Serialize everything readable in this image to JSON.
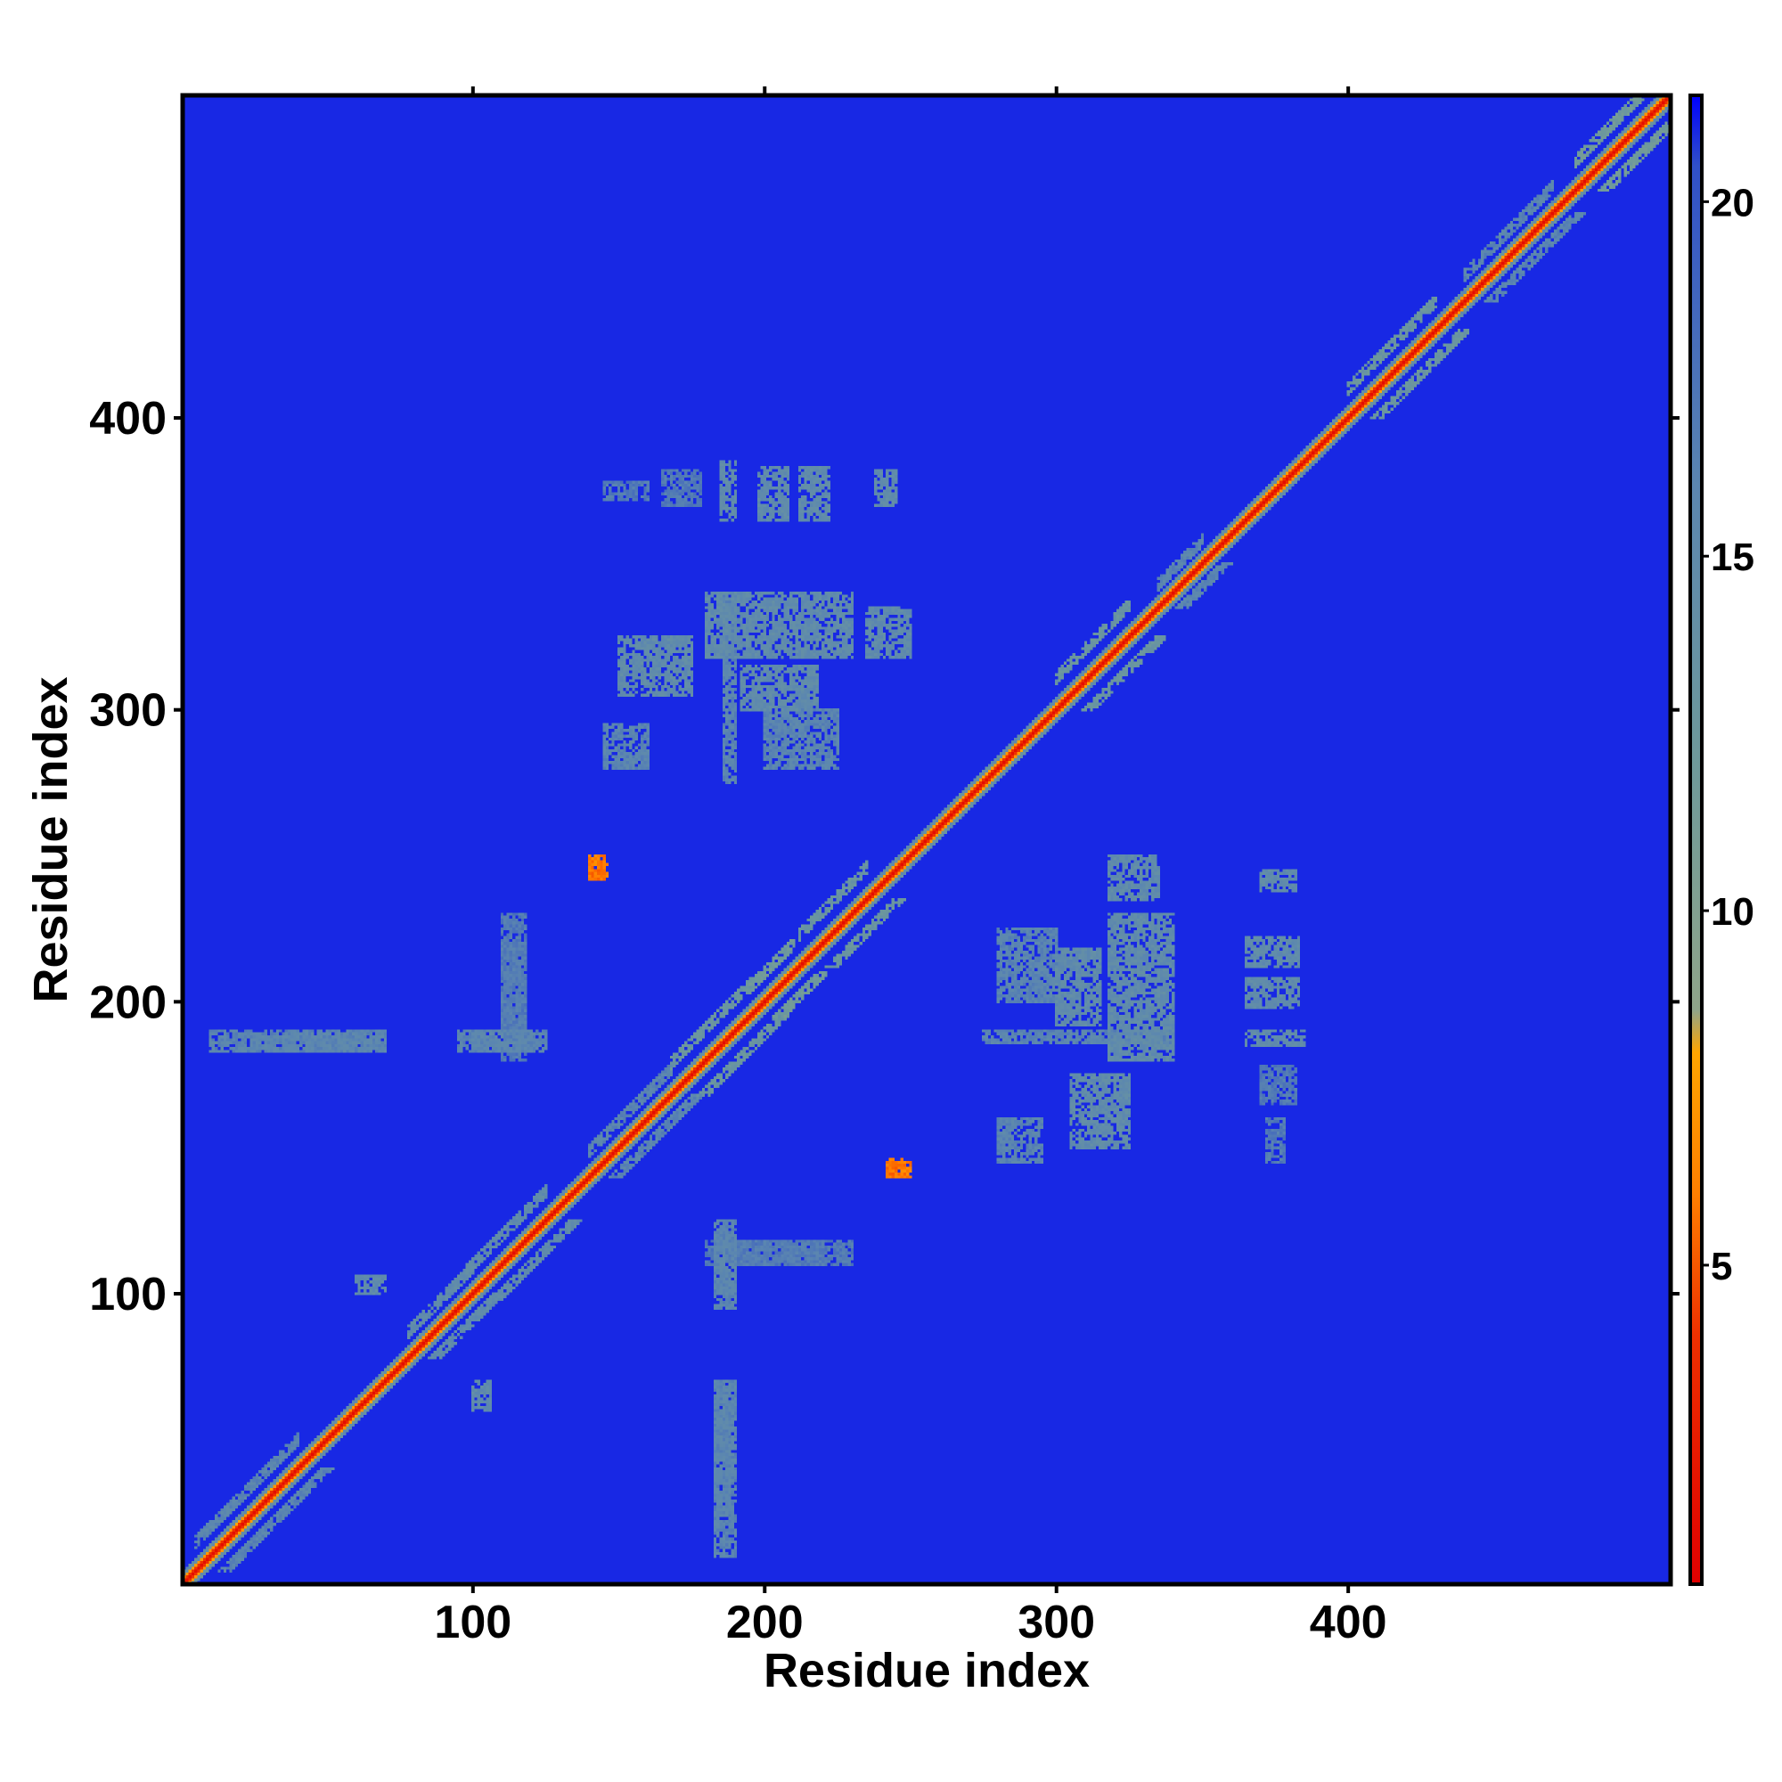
{
  "chart_data": {
    "type": "heatmap",
    "title": "",
    "xlabel": "Residue index",
    "ylabel": "Residue index",
    "xlim": [
      1,
      510
    ],
    "ylim": [
      1,
      510
    ],
    "x_ticks": [
      100,
      200,
      300,
      400
    ],
    "y_ticks": [
      100,
      200,
      300,
      400
    ],
    "colorbar": {
      "range": [
        0.5,
        21.5
      ],
      "ticks": [
        5,
        10,
        15,
        20
      ],
      "stops": [
        {
          "value": 0.5,
          "color": "#e00000"
        },
        {
          "value": 4.0,
          "color": "#ee3000"
        },
        {
          "value": 6.0,
          "color": "#ff7f00"
        },
        {
          "value": 8.0,
          "color": "#ffa500"
        },
        {
          "value": 8.6,
          "color": "#8fa58a"
        },
        {
          "value": 12.0,
          "color": "#6f9a9a"
        },
        {
          "value": 16.0,
          "color": "#5b86b0"
        },
        {
          "value": 20.5,
          "color": "#3050c8"
        },
        {
          "value": 21.5,
          "color": "#0000ff"
        }
      ]
    },
    "background_value": 21,
    "colors": {
      "background": "#0000f6",
      "contact": "#5b86b0",
      "near": "#8fa58a",
      "diagonal": "#e02800",
      "diagonal_alt": "#ff8c00",
      "frame": "#000000"
    },
    "diagonal": {
      "core_value": 3,
      "halo_width": 4,
      "halo_value": 13
    },
    "symmetric": true,
    "contact_regions": [
      {
        "x": [
          186,
          190
        ],
        "y": [
          275,
          340
        ],
        "value": 16
      },
      {
        "x": [
          192,
          218
        ],
        "y": [
          300,
          315
        ],
        "value": 15
      },
      {
        "x": [
          150,
          175
        ],
        "y": [
          305,
          325
        ],
        "value": 15
      },
      {
        "x": [
          180,
          230
        ],
        "y": [
          318,
          340
        ],
        "value": 15
      },
      {
        "x": [
          235,
          250
        ],
        "y": [
          318,
          335
        ],
        "value": 15
      },
      {
        "x": [
          145,
          160
        ],
        "y": [
          280,
          295
        ],
        "value": 16
      },
      {
        "x": [
          200,
          225
        ],
        "y": [
          280,
          300
        ],
        "value": 16
      },
      {
        "x": [
          185,
          190
        ],
        "y": [
          365,
          385
        ],
        "value": 15
      },
      {
        "x": [
          198,
          208
        ],
        "y": [
          365,
          383
        ],
        "value": 15
      },
      {
        "x": [
          212,
          222
        ],
        "y": [
          365,
          383
        ],
        "value": 15
      },
      {
        "x": [
          238,
          245
        ],
        "y": [
          370,
          382
        ],
        "value": 15
      },
      {
        "x": [
          165,
          178
        ],
        "y": [
          370,
          382
        ],
        "value": 17
      },
      {
        "x": [
          145,
          160
        ],
        "y": [
          372,
          378
        ],
        "value": 17
      },
      {
        "x": [
          20,
          70
        ],
        "y": [
          183,
          188
        ],
        "value": 16
      },
      {
        "x": [
          100,
          120
        ],
        "y": [
          183,
          190
        ],
        "value": 16
      },
      {
        "x": [
          110,
          118
        ],
        "y": [
          190,
          220
        ],
        "value": 17
      },
      {
        "x": [
          183,
          190
        ],
        "y": [
          10,
          70
        ],
        "value": 16
      },
      {
        "x": [
          183,
          190
        ],
        "y": [
          95,
          125
        ],
        "value": 16
      },
      {
        "x": [
          180,
          230
        ],
        "y": [
          110,
          118
        ],
        "value": 17
      },
      {
        "x": [
          140,
          145
        ],
        "y": [
          242,
          250
        ],
        "value": 6
      },
      {
        "x": [
          242,
          248
        ],
        "y": [
          140,
          146
        ],
        "value": 6
      },
      {
        "x": [
          60,
          70
        ],
        "y": [
          100,
          106
        ],
        "value": 15
      }
    ],
    "off_diagonal_bands": [
      {
        "start": 5,
        "end": 40,
        "offset": 10,
        "value": 15
      },
      {
        "start": 78,
        "end": 100,
        "offset": 9,
        "value": 14
      },
      {
        "start": 98,
        "end": 125,
        "offset": 10,
        "value": 14
      },
      {
        "start": 140,
        "end": 168,
        "offset": 9,
        "value": 15
      },
      {
        "start": 168,
        "end": 195,
        "offset": 11,
        "value": 12
      },
      {
        "start": 195,
        "end": 210,
        "offset": 10,
        "value": 11
      },
      {
        "start": 212,
        "end": 235,
        "offset": 11,
        "value": 12
      },
      {
        "start": 300,
        "end": 325,
        "offset": 11,
        "value": 12
      },
      {
        "start": 335,
        "end": 350,
        "offset": 8,
        "value": 15
      },
      {
        "start": 400,
        "end": 430,
        "offset": 10,
        "value": 12
      },
      {
        "start": 440,
        "end": 470,
        "offset": 9,
        "value": 15
      },
      {
        "start": 478,
        "end": 505,
        "offset": 10,
        "value": 11
      }
    ]
  }
}
